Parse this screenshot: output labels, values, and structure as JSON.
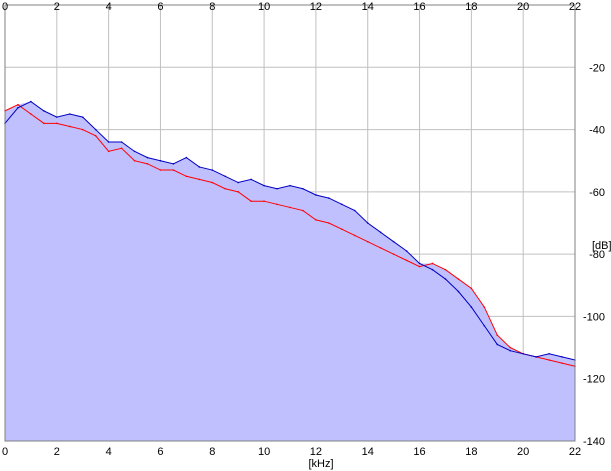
{
  "chart_data": {
    "type": "area",
    "xlabel": "[kHz]",
    "ylabel": "[dB]",
    "xlim": [
      0,
      22
    ],
    "ylim": [
      -140,
      0
    ],
    "x_ticks": [
      "0",
      "2",
      "4",
      "6",
      "8",
      "10",
      "12",
      "14",
      "16",
      "18",
      "20",
      "22"
    ],
    "y_ticks": [
      "-20",
      "-40",
      "-60",
      "-80",
      "-100",
      "-120",
      "-140"
    ],
    "grid": true,
    "fill_color": "#c0c0ff",
    "series": [
      {
        "color": "#ff0000",
        "x": [
          0,
          0.5,
          1,
          1.5,
          2,
          2.5,
          3,
          3.5,
          4,
          4.5,
          5,
          5.5,
          6,
          6.5,
          7,
          7.5,
          8,
          8.5,
          9,
          9.5,
          10,
          10.5,
          11,
          11.5,
          12,
          12.5,
          13,
          13.5,
          14,
          14.5,
          15,
          15.5,
          16,
          16.5,
          17,
          17.5,
          18,
          18.5,
          19,
          19.5,
          20,
          20.5,
          21,
          21.5,
          22
        ],
        "y": [
          -34,
          -32,
          -35,
          -38,
          -38,
          -39,
          -40,
          -42,
          -47,
          -46,
          -50,
          -51,
          -53,
          -53,
          -55,
          -56,
          -57,
          -59,
          -60,
          -63,
          -63,
          -64,
          -65,
          -66,
          -69,
          -70,
          -72,
          -74,
          -76,
          -78,
          -80,
          -82,
          -84,
          -83,
          -85,
          -88,
          -91,
          -97,
          -106,
          -110,
          -112,
          -113,
          -114,
          -115,
          -116
        ]
      },
      {
        "color": "#0000c0",
        "x": [
          0,
          0.5,
          1,
          1.5,
          2,
          2.5,
          3,
          3.5,
          4,
          4.5,
          5,
          5.5,
          6,
          6.5,
          7,
          7.5,
          8,
          8.5,
          9,
          9.5,
          10,
          10.5,
          11,
          11.5,
          12,
          12.5,
          13,
          13.5,
          14,
          14.5,
          15,
          15.5,
          16,
          16.5,
          17,
          17.5,
          18,
          18.5,
          19,
          19.5,
          20,
          20.5,
          21,
          21.5,
          22
        ],
        "y": [
          -38,
          -33,
          -31,
          -34,
          -36,
          -35,
          -36,
          -40,
          -44,
          -44,
          -47,
          -49,
          -50,
          -51,
          -49,
          -52,
          -53,
          -55,
          -57,
          -56,
          -58,
          -59,
          -58,
          -59,
          -61,
          -62,
          -64,
          -66,
          -70,
          -73,
          -76,
          -79,
          -83,
          -85,
          -88,
          -92,
          -97,
          -103,
          -109,
          -111,
          -112,
          -113,
          -112,
          -113,
          -114
        ]
      }
    ]
  }
}
